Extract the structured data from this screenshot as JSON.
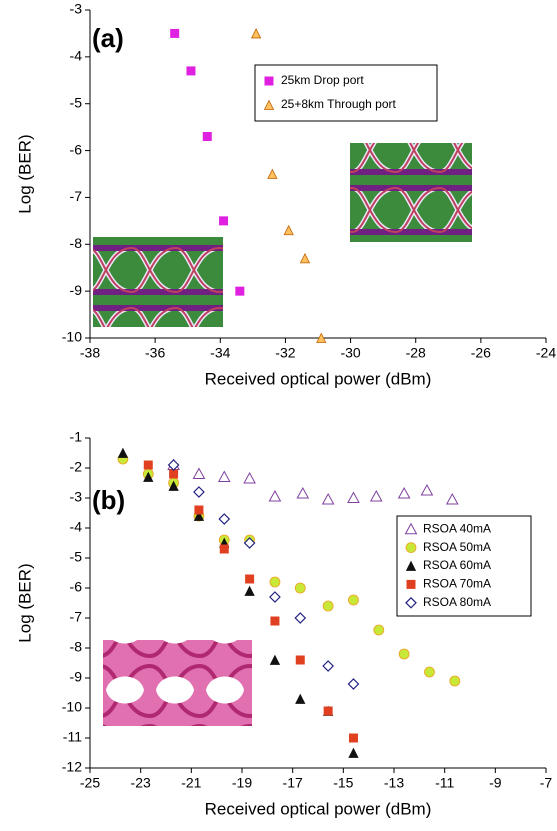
{
  "chart_data": [
    {
      "type": "scatter",
      "panel_label": "(a)",
      "x_label": "Received optical power (dBm)",
      "y_label": "Log (BER)",
      "xlim": [
        -38,
        -24
      ],
      "xticks": [
        -38,
        -36,
        -34,
        -32,
        -30,
        -28,
        -26,
        -24
      ],
      "ylim": [
        -10,
        -3
      ],
      "yticks": [
        -10,
        -9,
        -8,
        -7,
        -6,
        -5,
        -4,
        -3
      ],
      "series": [
        {
          "name": "25km Drop port",
          "color": "#e020e0",
          "marker": "square",
          "x": [
            -35.4,
            -34.9,
            -34.4,
            -33.9,
            -33.4
          ],
          "values": [
            -3.5,
            -4.3,
            -5.7,
            -7.5,
            -9.0
          ]
        },
        {
          "name": "25+8km Through port",
          "color": "#ffc060",
          "marker": "triangle",
          "x": [
            -32.9,
            -32.4,
            -31.9,
            -31.4,
            -30.9
          ],
          "values": [
            -3.5,
            -6.5,
            -7.7,
            -8.3,
            -10.0
          ]
        }
      ]
    },
    {
      "type": "scatter",
      "panel_label": "(b)",
      "x_label": "Received optical power (dBm)",
      "y_label": "Log (BER)",
      "xlim": [
        -25,
        -7
      ],
      "xticks": [
        -25,
        -23,
        -21,
        -19,
        -17,
        -15,
        -13,
        -11,
        -9,
        -7
      ],
      "ylim": [
        -12,
        -1
      ],
      "yticks": [
        -12,
        -11,
        -10,
        -9,
        -8,
        -7,
        -6,
        -5,
        -4,
        -3,
        -2,
        -1
      ],
      "series": [
        {
          "name": "RSOA 40mA",
          "color": "#8040a0",
          "marker": "open-triangle",
          "x": [
            -21.7,
            -20.7,
            -19.7,
            -18.7,
            -17.7,
            -16.6,
            -15.6,
            -14.6,
            -13.7,
            -12.6,
            -11.7,
            -10.7
          ],
          "values": [
            -1.9,
            -2.2,
            -2.3,
            -2.35,
            -2.95,
            -2.85,
            -3.05,
            -3.0,
            -2.95,
            -2.85,
            -2.75,
            -3.05
          ]
        },
        {
          "name": "RSOA 50mA",
          "color": "#c8e838",
          "marker": "circle",
          "x": [
            -23.7,
            -22.7,
            -21.7,
            -20.7,
            -19.7,
            -18.7,
            -17.7,
            -16.7,
            -15.6,
            -14.6,
            -13.6,
            -12.6,
            -11.6,
            -10.6
          ],
          "values": [
            -1.7,
            -2.2,
            -2.5,
            -3.6,
            -4.4,
            -4.4,
            -5.8,
            -6.0,
            -6.6,
            -6.4,
            -7.4,
            -8.2,
            -8.8,
            -9.1
          ]
        },
        {
          "name": "RSOA 60mA",
          "color": "#111111",
          "marker": "triangle",
          "x": [
            -23.7,
            -22.7,
            -21.7,
            -20.7,
            -19.7,
            -18.7,
            -17.7,
            -16.7,
            -15.6,
            -14.6
          ],
          "values": [
            -1.5,
            -2.3,
            -2.6,
            -3.6,
            -4.5,
            -6.1,
            -8.4,
            -9.7,
            -10.1,
            -11.5
          ]
        },
        {
          "name": "RSOA 70mA",
          "color": "#e04020",
          "marker": "square",
          "x": [
            -22.7,
            -21.7,
            -20.7,
            -19.7,
            -18.7,
            -17.7,
            -16.7,
            -15.6,
            -14.6
          ],
          "values": [
            -1.9,
            -2.2,
            -3.4,
            -4.7,
            -5.7,
            -7.1,
            -8.4,
            -10.1,
            -11.0
          ]
        },
        {
          "name": "RSOA 80mA",
          "color": "#202080",
          "marker": "open-diamond",
          "x": [
            -21.7,
            -20.7,
            -19.7,
            -18.7,
            -17.7,
            -16.7,
            -15.6,
            -14.6
          ],
          "values": [
            -1.9,
            -2.8,
            -3.7,
            -4.5,
            -6.3,
            -7.0,
            -8.6,
            -9.2
          ]
        }
      ]
    }
  ]
}
